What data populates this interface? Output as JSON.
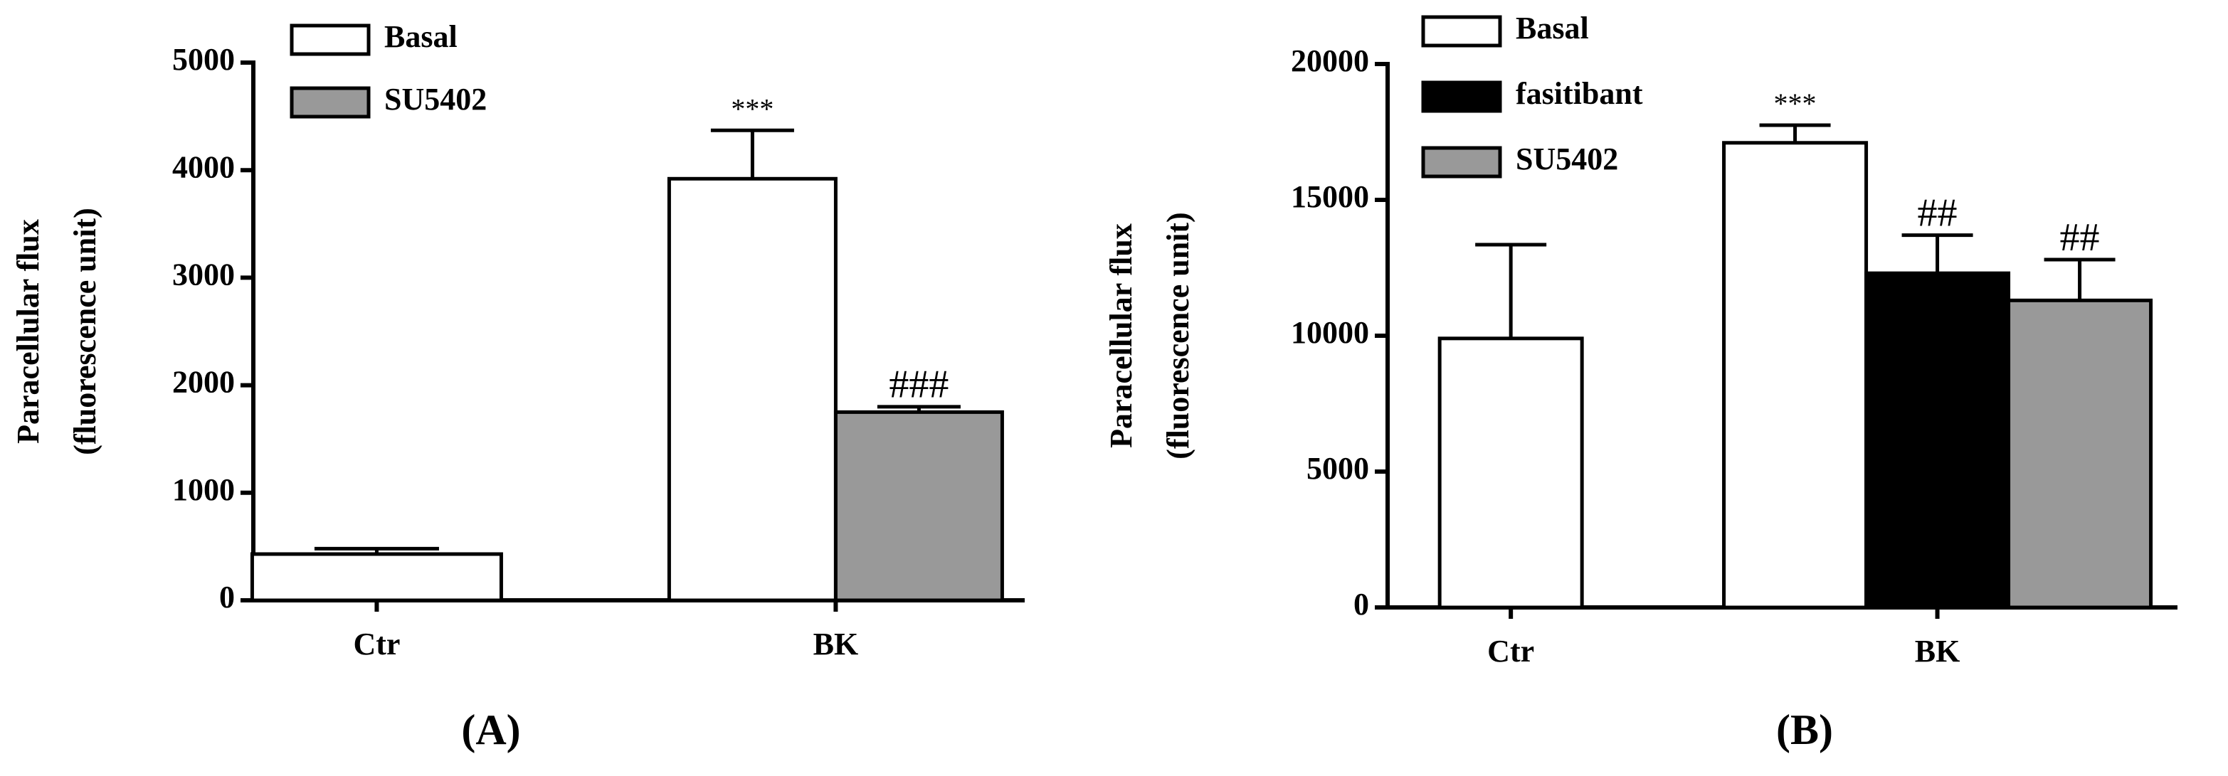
{
  "chart_data": [
    {
      "type": "bar",
      "panel_label": "(A)",
      "ylabel": [
        "Paracellular flux",
        "(fluorescence unit)"
      ],
      "categories": [
        "Ctr",
        "BK"
      ],
      "series": [
        {
          "name": "Basal",
          "color": "#ffffff",
          "values": [
            430,
            3920
          ],
          "errors": [
            50,
            450
          ],
          "annotations": [
            null,
            "***"
          ]
        },
        {
          "name": "SU5402",
          "color": "#999999",
          "values": [
            null,
            1750
          ],
          "errors": [
            null,
            50
          ],
          "annotations": [
            null,
            "###"
          ]
        }
      ],
      "ylim": [
        0,
        5000
      ],
      "yticks": [
        0,
        1000,
        2000,
        3000,
        4000,
        5000
      ]
    },
    {
      "type": "bar",
      "panel_label": "(B)",
      "ylabel": [
        "Paracellular flux",
        "(fluorescence unit)"
      ],
      "categories": [
        "Ctr",
        "BK"
      ],
      "series": [
        {
          "name": "Basal",
          "color": "#ffffff",
          "values": [
            9900,
            17100
          ],
          "errors": [
            3450,
            650
          ],
          "annotations": [
            null,
            "***"
          ]
        },
        {
          "name": "fasitibant",
          "color": "#000000",
          "values": [
            null,
            12300
          ],
          "errors": [
            null,
            1400
          ],
          "annotations": [
            null,
            "##"
          ]
        },
        {
          "name": "SU5402",
          "color": "#999999",
          "values": [
            null,
            11300
          ],
          "errors": [
            null,
            1500
          ],
          "annotations": [
            null,
            "##"
          ]
        }
      ],
      "ylim": [
        0,
        20000
      ],
      "yticks": [
        0,
        5000,
        10000,
        15000,
        20000
      ]
    }
  ]
}
